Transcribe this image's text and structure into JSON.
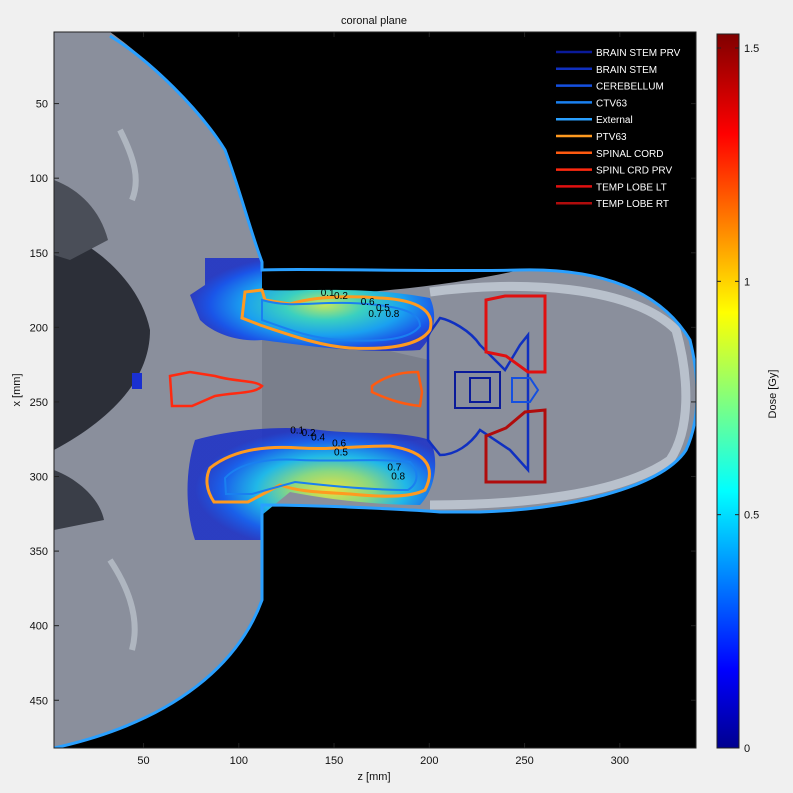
{
  "chart_data": {
    "type": "heatmap",
    "title": "coronal plane",
    "xlabel": "z [mm]",
    "ylabel": "x [mm]",
    "xlim": [
      3,
      340
    ],
    "ylim": [
      482,
      2
    ],
    "x_ticks": [
      50,
      100,
      150,
      200,
      250,
      300
    ],
    "y_ticks": [
      50,
      100,
      150,
      200,
      250,
      300,
      350,
      400,
      450
    ],
    "colorbar": {
      "label": "Dose [Gy]",
      "range": [
        0,
        1.53
      ],
      "ticks": [
        0,
        0.5,
        1,
        1.5
      ],
      "tick_labels": [
        "0",
        "0.5",
        "1",
        "1.5"
      ],
      "colormap": "jet"
    },
    "legend": {
      "placement": "top-right",
      "entries": [
        {
          "name": "BRAIN STEM PRV",
          "color": "#0a1a9a"
        },
        {
          "name": "BRAIN STEM",
          "color": "#1030c0"
        },
        {
          "name": "CEREBELLUM",
          "color": "#1550e0"
        },
        {
          "name": "CTV63",
          "color": "#1a80f0"
        },
        {
          "name": "External",
          "color": "#2aa0ff"
        },
        {
          "name": "PTV63",
          "color": "#ff9a20"
        },
        {
          "name": "SPINAL CORD",
          "color": "#ff5a10"
        },
        {
          "name": "SPINL CRD PRV",
          "color": "#ff2a10"
        },
        {
          "name": "TEMP LOBE LT",
          "color": "#e01010"
        },
        {
          "name": "TEMP LOBE RT",
          "color": "#b00c0c"
        }
      ]
    },
    "isodose_labels": [
      {
        "text": "0.1",
        "z": 143,
        "x": 179
      },
      {
        "text": "0.2",
        "z": 150,
        "x": 181
      },
      {
        "text": "0.6",
        "z": 164,
        "x": 185
      },
      {
        "text": "0.5",
        "z": 172,
        "x": 189
      },
      {
        "text": "0.7",
        "z": 168,
        "x": 193
      },
      {
        "text": "0.8",
        "z": 177,
        "x": 193
      },
      {
        "text": "0.1",
        "z": 127,
        "x": 271
      },
      {
        "text": "0.2",
        "z": 133,
        "x": 273
      },
      {
        "text": "0.4",
        "z": 138,
        "x": 276
      },
      {
        "text": "0.6",
        "z": 149,
        "x": 280
      },
      {
        "text": "0.5",
        "z": 150,
        "x": 286
      },
      {
        "text": "0.7",
        "z": 178,
        "x": 296
      },
      {
        "text": "0.8",
        "z": 180,
        "x": 302
      }
    ]
  }
}
